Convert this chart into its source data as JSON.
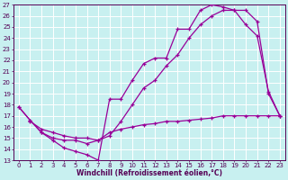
{
  "xlabel": "Windchill (Refroidissement éolien,°C)",
  "bg_color": "#c8f0f0",
  "grid_color": "#ffffff",
  "line_color": "#990099",
  "xlim": [
    -0.5,
    23.5
  ],
  "ylim": [
    13,
    27
  ],
  "xticks": [
    0,
    1,
    2,
    3,
    4,
    5,
    6,
    7,
    8,
    9,
    10,
    11,
    12,
    13,
    14,
    15,
    16,
    17,
    18,
    19,
    20,
    21,
    22,
    23
  ],
  "yticks": [
    13,
    14,
    15,
    16,
    17,
    18,
    19,
    20,
    21,
    22,
    23,
    24,
    25,
    26,
    27
  ],
  "line1_x": [
    0,
    1,
    2,
    3,
    4,
    5,
    6,
    7,
    8,
    9,
    10,
    11,
    12,
    13,
    14,
    15,
    16,
    17,
    18,
    19,
    20,
    21,
    22,
    23
  ],
  "line1_y": [
    17.8,
    16.6,
    15.5,
    14.8,
    14.1,
    13.8,
    13.5,
    13.0,
    18.5,
    18.5,
    20.2,
    21.7,
    22.2,
    22.2,
    24.8,
    24.8,
    26.5,
    27.0,
    26.8,
    26.5,
    25.2,
    24.2,
    19.2,
    17.0
  ],
  "line2_x": [
    0,
    1,
    2,
    3,
    4,
    5,
    6,
    7,
    8,
    9,
    10,
    11,
    12,
    13,
    14,
    15,
    16,
    17,
    18,
    19,
    20,
    21,
    22,
    23
  ],
  "line2_y": [
    17.8,
    16.6,
    15.5,
    15.0,
    14.8,
    14.8,
    14.5,
    14.8,
    15.2,
    16.5,
    18.0,
    19.5,
    20.2,
    21.5,
    22.5,
    24.0,
    25.2,
    26.0,
    26.5,
    26.5,
    26.5,
    25.5,
    19.0,
    17.0
  ],
  "line3_x": [
    1,
    2,
    3,
    4,
    5,
    6,
    7,
    8,
    9,
    10,
    11,
    12,
    13,
    14,
    15,
    16,
    17,
    18,
    19,
    20,
    21,
    22,
    23
  ],
  "line3_y": [
    16.5,
    15.8,
    15.5,
    15.2,
    15.0,
    15.0,
    14.8,
    15.5,
    15.8,
    16.0,
    16.2,
    16.3,
    16.5,
    16.5,
    16.6,
    16.7,
    16.8,
    17.0,
    17.0,
    17.0,
    17.0,
    17.0,
    17.0
  ],
  "marker": "+",
  "markersize": 3,
  "linewidth": 0.9,
  "tick_fontsize": 5,
  "xlabel_fontsize": 5.5
}
